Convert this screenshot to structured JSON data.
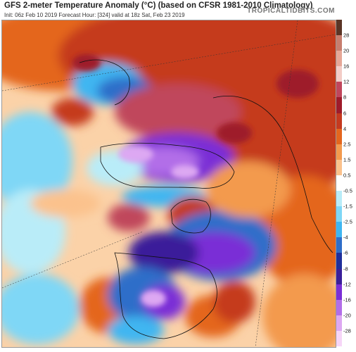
{
  "header": {
    "title": "GFS 2-meter Temperature Anomaly (°C) (based on CFSR 1981-2010 Climatology)",
    "subtitle": "Init: 06z Feb 10 2019   Forecast Hour: [324]   valid at 18z Sat, Feb 23 2019",
    "brand": "TROPICALTIDBITS.COM"
  },
  "colorbar": {
    "labels": [
      "28",
      "20",
      "16",
      "12",
      "8",
      "6",
      "4",
      "2.5",
      "1.5",
      "0.5",
      "-0.5",
      "-1.5",
      "-2.5",
      "-4",
      "-6",
      "-8",
      "-12",
      "-16",
      "-20",
      "-28"
    ],
    "colors": [
      "#5b3526",
      "#c77e6e",
      "#e6a797",
      "#f3cdc7",
      "#c0465c",
      "#9e1b2a",
      "#c53a1f",
      "#e4661e",
      "#f39a4e",
      "#fbc28d",
      "#ffffff",
      "#b9ecf8",
      "#7fd7f6",
      "#3fb6f1",
      "#2f6ec9",
      "#1f2f9b",
      "#3a1f9a",
      "#7a2fd6",
      "#b26ee8",
      "#dda8f2",
      "#f6d6f7"
    ]
  }
}
